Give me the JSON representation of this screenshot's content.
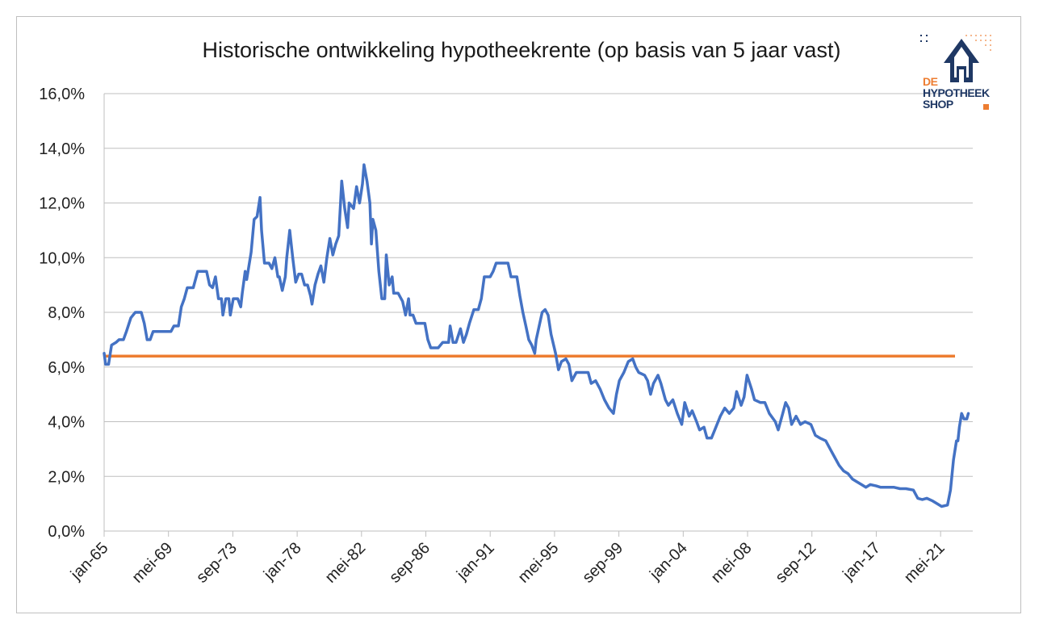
{
  "title": "Historische ontwikkeling hypotheekrente (op basis van 5 jaar vast)",
  "logo": {
    "line1": "DE",
    "line2": "HYPOTHEEK",
    "line3": "SHOP",
    "colors": {
      "navy": "#1f3864",
      "orange": "#ed7d31"
    }
  },
  "colors": {
    "series": "#4472c4",
    "average": "#ed7d31",
    "grid": "#bfbfbf"
  },
  "chart_data": {
    "type": "line",
    "title": "Historische ontwikkeling hypotheekrente (op basis van 5 jaar vast)",
    "xlabel": "",
    "ylabel": "",
    "ylim": [
      0,
      16
    ],
    "xlim": [
      1965.0,
      2023.5
    ],
    "grid": true,
    "legend": "none",
    "y_ticks": [
      "0,0%",
      "2,0%",
      "4,0%",
      "6,0%",
      "8,0%",
      "10,0%",
      "12,0%",
      "14,0%",
      "16,0%"
    ],
    "y_tick_values": [
      0,
      2,
      4,
      6,
      8,
      10,
      12,
      14,
      16
    ],
    "x_ticks": [
      "jan-65",
      "mei-69",
      "sep-73",
      "jan-78",
      "mei-82",
      "sep-86",
      "jan-91",
      "mei-95",
      "sep-99",
      "jan-04",
      "mei-08",
      "sep-12",
      "jan-17",
      "mei-21"
    ],
    "x_tick_values": [
      1965.0,
      1969.333,
      1973.667,
      1978.0,
      1982.333,
      1986.667,
      1991.0,
      1995.333,
      1999.667,
      2004.0,
      2008.333,
      2012.667,
      2017.0,
      2021.333
    ],
    "series": [
      {
        "values_format": "[year, percent]",
        "points": [
          [
            1965.0,
            6.5
          ],
          [
            1965.1,
            6.1
          ],
          [
            1965.3,
            6.1
          ],
          [
            1965.5,
            6.8
          ],
          [
            1965.8,
            6.9
          ],
          [
            1966.0,
            7.0
          ],
          [
            1966.3,
            7.0
          ],
          [
            1966.5,
            7.3
          ],
          [
            1966.8,
            7.8
          ],
          [
            1967.1,
            8.0
          ],
          [
            1967.5,
            8.0
          ],
          [
            1967.7,
            7.6
          ],
          [
            1967.9,
            7.0
          ],
          [
            1968.1,
            7.0
          ],
          [
            1968.3,
            7.3
          ],
          [
            1968.8,
            7.3
          ],
          [
            1969.2,
            7.3
          ],
          [
            1969.5,
            7.3
          ],
          [
            1969.7,
            7.5
          ],
          [
            1970.0,
            7.5
          ],
          [
            1970.2,
            8.2
          ],
          [
            1970.4,
            8.5
          ],
          [
            1970.6,
            8.9
          ],
          [
            1971.0,
            8.9
          ],
          [
            1971.3,
            9.5
          ],
          [
            1971.7,
            9.5
          ],
          [
            1971.9,
            9.5
          ],
          [
            1972.1,
            9.0
          ],
          [
            1972.3,
            8.9
          ],
          [
            1972.5,
            9.3
          ],
          [
            1972.7,
            8.5
          ],
          [
            1972.9,
            8.5
          ],
          [
            1973.0,
            7.9
          ],
          [
            1973.2,
            8.5
          ],
          [
            1973.4,
            8.5
          ],
          [
            1973.5,
            7.9
          ],
          [
            1973.7,
            8.5
          ],
          [
            1974.0,
            8.5
          ],
          [
            1974.2,
            8.2
          ],
          [
            1974.3,
            8.7
          ],
          [
            1974.5,
            9.5
          ],
          [
            1974.6,
            9.2
          ],
          [
            1974.9,
            10.2
          ],
          [
            1975.1,
            11.4
          ],
          [
            1975.3,
            11.5
          ],
          [
            1975.5,
            12.2
          ],
          [
            1975.6,
            11.0
          ],
          [
            1975.8,
            9.8
          ],
          [
            1976.1,
            9.8
          ],
          [
            1976.3,
            9.6
          ],
          [
            1976.5,
            10.0
          ],
          [
            1976.7,
            9.3
          ],
          [
            1976.8,
            9.3
          ],
          [
            1977.0,
            8.8
          ],
          [
            1977.2,
            9.3
          ],
          [
            1977.3,
            10.0
          ],
          [
            1977.5,
            11.0
          ],
          [
            1977.7,
            10.0
          ],
          [
            1977.9,
            9.1
          ],
          [
            1978.1,
            9.4
          ],
          [
            1978.3,
            9.4
          ],
          [
            1978.5,
            9.0
          ],
          [
            1978.7,
            9.0
          ],
          [
            1978.9,
            8.6
          ],
          [
            1979.0,
            8.3
          ],
          [
            1979.2,
            9.0
          ],
          [
            1979.4,
            9.4
          ],
          [
            1979.6,
            9.7
          ],
          [
            1979.8,
            9.1
          ],
          [
            1980.0,
            10.0
          ],
          [
            1980.2,
            10.7
          ],
          [
            1980.4,
            10.1
          ],
          [
            1980.6,
            10.5
          ],
          [
            1980.8,
            10.8
          ],
          [
            1981.0,
            12.8
          ],
          [
            1981.2,
            11.8
          ],
          [
            1981.4,
            11.1
          ],
          [
            1981.5,
            12.0
          ],
          [
            1981.8,
            11.8
          ],
          [
            1982.0,
            12.6
          ],
          [
            1982.2,
            12.0
          ],
          [
            1982.4,
            12.7
          ],
          [
            1982.5,
            13.4
          ],
          [
            1982.7,
            12.8
          ],
          [
            1982.9,
            12.0
          ],
          [
            1983.0,
            10.5
          ],
          [
            1983.1,
            11.4
          ],
          [
            1983.3,
            11.0
          ],
          [
            1983.5,
            9.5
          ],
          [
            1983.7,
            8.5
          ],
          [
            1983.9,
            8.5
          ],
          [
            1984.0,
            10.1
          ],
          [
            1984.2,
            9.0
          ],
          [
            1984.4,
            9.3
          ],
          [
            1984.5,
            8.7
          ],
          [
            1984.8,
            8.7
          ],
          [
            1985.1,
            8.4
          ],
          [
            1985.3,
            7.9
          ],
          [
            1985.5,
            8.5
          ],
          [
            1985.6,
            7.9
          ],
          [
            1985.8,
            7.9
          ],
          [
            1986.0,
            7.6
          ],
          [
            1986.3,
            7.6
          ],
          [
            1986.6,
            7.6
          ],
          [
            1986.8,
            7.0
          ],
          [
            1987.0,
            6.7
          ],
          [
            1987.5,
            6.7
          ],
          [
            1987.8,
            6.9
          ],
          [
            1988.2,
            6.9
          ],
          [
            1988.3,
            7.5
          ],
          [
            1988.5,
            6.9
          ],
          [
            1988.7,
            6.9
          ],
          [
            1989.0,
            7.4
          ],
          [
            1989.2,
            6.9
          ],
          [
            1989.4,
            7.2
          ],
          [
            1989.6,
            7.6
          ],
          [
            1989.9,
            8.1
          ],
          [
            1990.2,
            8.1
          ],
          [
            1990.4,
            8.5
          ],
          [
            1990.6,
            9.3
          ],
          [
            1991.0,
            9.3
          ],
          [
            1991.2,
            9.5
          ],
          [
            1991.4,
            9.8
          ],
          [
            1991.8,
            9.8
          ],
          [
            1992.2,
            9.8
          ],
          [
            1992.4,
            9.3
          ],
          [
            1992.8,
            9.3
          ],
          [
            1993.0,
            8.6
          ],
          [
            1993.2,
            8.0
          ],
          [
            1993.4,
            7.5
          ],
          [
            1993.6,
            7.0
          ],
          [
            1993.8,
            6.8
          ],
          [
            1994.0,
            6.5
          ],
          [
            1994.1,
            7.0
          ],
          [
            1994.3,
            7.5
          ],
          [
            1994.5,
            8.0
          ],
          [
            1994.7,
            8.1
          ],
          [
            1994.9,
            7.9
          ],
          [
            1995.1,
            7.2
          ],
          [
            1995.4,
            6.5
          ],
          [
            1995.6,
            5.9
          ],
          [
            1995.8,
            6.2
          ],
          [
            1996.1,
            6.3
          ],
          [
            1996.3,
            6.1
          ],
          [
            1996.5,
            5.5
          ],
          [
            1996.8,
            5.8
          ],
          [
            1997.2,
            5.8
          ],
          [
            1997.6,
            5.8
          ],
          [
            1997.8,
            5.4
          ],
          [
            1998.1,
            5.5
          ],
          [
            1998.4,
            5.2
          ],
          [
            1998.7,
            4.8
          ],
          [
            1999.0,
            4.5
          ],
          [
            1999.3,
            4.3
          ],
          [
            1999.5,
            5.0
          ],
          [
            1999.7,
            5.5
          ],
          [
            2000.0,
            5.8
          ],
          [
            2000.3,
            6.2
          ],
          [
            2000.6,
            6.3
          ],
          [
            2000.8,
            6.0
          ],
          [
            2001.0,
            5.8
          ],
          [
            2001.4,
            5.7
          ],
          [
            2001.6,
            5.5
          ],
          [
            2001.8,
            5.0
          ],
          [
            2002.0,
            5.4
          ],
          [
            2002.3,
            5.7
          ],
          [
            2002.5,
            5.4
          ],
          [
            2002.8,
            4.8
          ],
          [
            2003.0,
            4.6
          ],
          [
            2003.3,
            4.8
          ],
          [
            2003.6,
            4.3
          ],
          [
            2003.9,
            3.9
          ],
          [
            2004.1,
            4.7
          ],
          [
            2004.4,
            4.2
          ],
          [
            2004.6,
            4.4
          ],
          [
            2004.9,
            4.0
          ],
          [
            2005.1,
            3.7
          ],
          [
            2005.4,
            3.8
          ],
          [
            2005.6,
            3.4
          ],
          [
            2005.9,
            3.4
          ],
          [
            2006.2,
            3.8
          ],
          [
            2006.5,
            4.2
          ],
          [
            2006.8,
            4.5
          ],
          [
            2007.1,
            4.3
          ],
          [
            2007.4,
            4.5
          ],
          [
            2007.6,
            5.1
          ],
          [
            2007.9,
            4.6
          ],
          [
            2008.1,
            4.9
          ],
          [
            2008.3,
            5.7
          ],
          [
            2008.6,
            5.2
          ],
          [
            2008.8,
            4.8
          ],
          [
            2009.2,
            4.7
          ],
          [
            2009.5,
            4.7
          ],
          [
            2009.8,
            4.3
          ],
          [
            2010.2,
            4.0
          ],
          [
            2010.4,
            3.7
          ],
          [
            2010.7,
            4.3
          ],
          [
            2010.9,
            4.7
          ],
          [
            2011.1,
            4.5
          ],
          [
            2011.3,
            3.9
          ],
          [
            2011.6,
            4.2
          ],
          [
            2011.9,
            3.9
          ],
          [
            2012.2,
            4.0
          ],
          [
            2012.6,
            3.9
          ],
          [
            2012.9,
            3.5
          ],
          [
            2013.2,
            3.4
          ],
          [
            2013.6,
            3.3
          ],
          [
            2013.9,
            3.0
          ],
          [
            2014.2,
            2.7
          ],
          [
            2014.5,
            2.4
          ],
          [
            2014.8,
            2.2
          ],
          [
            2015.1,
            2.1
          ],
          [
            2015.4,
            1.9
          ],
          [
            2015.7,
            1.8
          ],
          [
            2016.0,
            1.7
          ],
          [
            2016.3,
            1.6
          ],
          [
            2016.6,
            1.7
          ],
          [
            2017.0,
            1.65
          ],
          [
            2017.3,
            1.6
          ],
          [
            2017.8,
            1.6
          ],
          [
            2018.2,
            1.6
          ],
          [
            2018.6,
            1.55
          ],
          [
            2019.0,
            1.55
          ],
          [
            2019.5,
            1.5
          ],
          [
            2019.8,
            1.2
          ],
          [
            2020.1,
            1.15
          ],
          [
            2020.4,
            1.2
          ],
          [
            2020.8,
            1.1
          ],
          [
            2021.1,
            1.0
          ],
          [
            2021.4,
            0.9
          ],
          [
            2021.8,
            0.95
          ],
          [
            2022.0,
            1.5
          ],
          [
            2022.2,
            2.6
          ],
          [
            2022.4,
            3.3
          ],
          [
            2022.5,
            3.3
          ],
          [
            2022.6,
            3.8
          ],
          [
            2022.75,
            4.3
          ],
          [
            2022.9,
            4.1
          ],
          [
            2023.1,
            4.1
          ],
          [
            2023.2,
            4.3
          ]
        ]
      }
    ],
    "reference_line": {
      "value": 6.4
    }
  }
}
